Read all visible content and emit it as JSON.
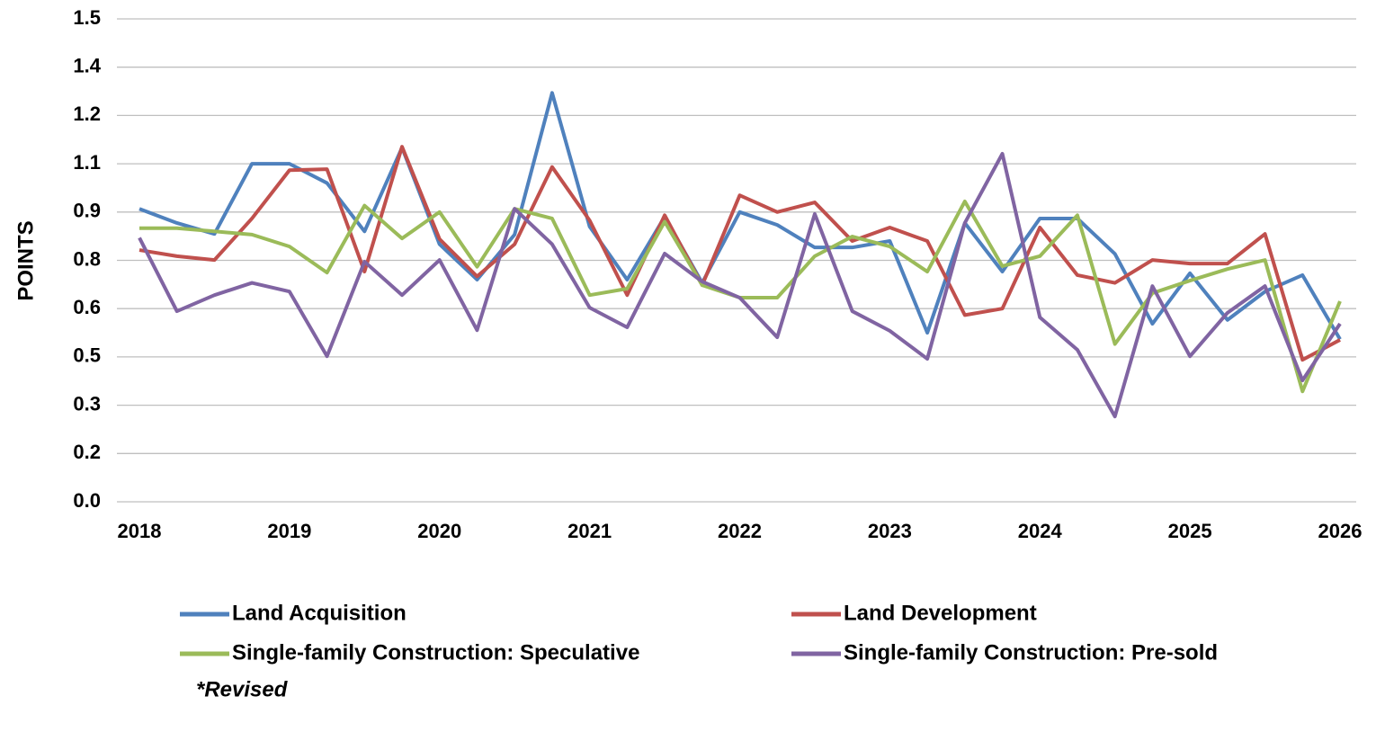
{
  "chart_data": {
    "type": "line",
    "y_label": "POINTS",
    "note": "*Revised",
    "x": [
      2018,
      2018.25,
      2018.5,
      2018.75,
      2019,
      2019.25,
      2019.5,
      2019.75,
      2020,
      2020.25,
      2020.5,
      2020.75,
      2021,
      2021.25,
      2021.5,
      2021.75,
      2022,
      2022.25,
      2022.5,
      2022.75,
      2023,
      2023.25,
      2023.5,
      2023.75,
      2024,
      2024.25,
      2024.5,
      2024.75,
      2025,
      2025.25,
      2025.5,
      2025.75,
      2026
    ],
    "xlim": [
      2018,
      2026
    ],
    "xticks": [
      2018,
      2019,
      2020,
      2021,
      2022,
      2023,
      2024,
      2025,
      2026
    ],
    "ylim": [
      0,
      1.5
    ],
    "yticks": [
      {
        "value": 0,
        "label": "0.0"
      },
      {
        "value": 0.15,
        "label": "0.2"
      },
      0.3,
      {
        "value": 0.45,
        "label": "0.5"
      },
      0.6,
      {
        "value": 0.75,
        "label": "0.8"
      },
      0.9,
      {
        "value": 1.05,
        "label": "1.1"
      },
      1.2,
      {
        "value": 1.35,
        "label": "1.4"
      },
      1.5
    ],
    "grid": true,
    "legend": "bottom",
    "series": [
      {
        "name": "Land Acquisition",
        "color": "#4f81bd",
        "values": [
          0.91,
          0.866,
          0.832,
          1.05,
          1.05,
          0.99,
          0.84,
          1.1,
          0.8,
          0.69,
          0.83,
          1.27,
          0.855,
          0.69,
          0.885,
          0.68,
          0.9,
          0.86,
          0.79,
          0.79,
          0.81,
          0.525,
          0.866,
          0.715,
          0.88,
          0.88,
          0.77,
          0.553,
          0.71,
          0.565,
          0.653,
          0.704,
          0.505
        ]
      },
      {
        "name": "Land Development",
        "color": "#c0504d",
        "values": [
          0.782,
          0.763,
          0.751,
          0.88,
          1.03,
          1.033,
          0.715,
          1.103,
          0.816,
          0.7,
          0.8,
          1.04,
          0.874,
          0.642,
          0.89,
          0.673,
          0.952,
          0.9,
          0.93,
          0.81,
          0.852,
          0.81,
          0.58,
          0.6,
          0.852,
          0.704,
          0.68,
          0.751,
          0.74,
          0.74,
          0.832,
          0.441,
          0.503
        ]
      },
      {
        "name": "Single-family Construction: Speculative",
        "color": "#9bbb59",
        "values": [
          0.85,
          0.85,
          0.84,
          0.83,
          0.793,
          0.712,
          0.92,
          0.818,
          0.9,
          0.73,
          0.91,
          0.88,
          0.642,
          0.662,
          0.87,
          0.673,
          0.634,
          0.634,
          0.763,
          0.824,
          0.793,
          0.715,
          0.933,
          0.732,
          0.763,
          0.89,
          0.49,
          0.648,
          0.687,
          0.723,
          0.751,
          0.343,
          0.623
        ]
      },
      {
        "name": "Single-family Construction: Pre-sold",
        "color": "#8064a2",
        "values": [
          0.82,
          0.592,
          0.642,
          0.68,
          0.653,
          0.452,
          0.746,
          0.642,
          0.751,
          0.533,
          0.91,
          0.8,
          0.603,
          0.542,
          0.771,
          0.684,
          0.634,
          0.511,
          0.894,
          0.592,
          0.531,
          0.444,
          0.866,
          1.081,
          0.573,
          0.472,
          0.265,
          0.67,
          0.452,
          0.587,
          0.67,
          0.377,
          0.553
        ]
      }
    ]
  }
}
